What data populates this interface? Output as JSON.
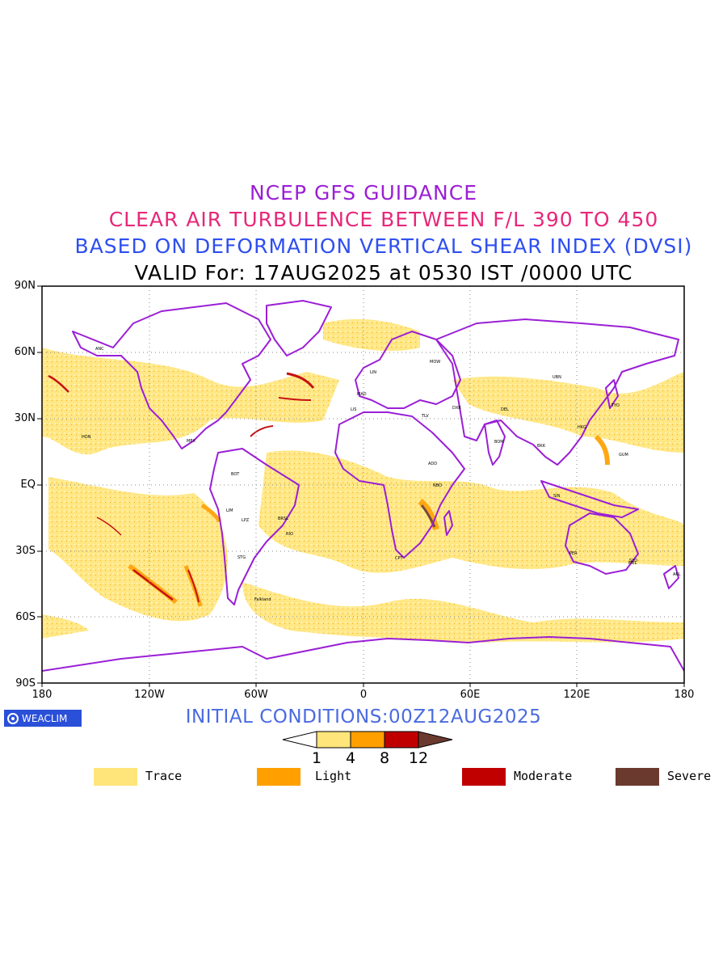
{
  "titles": {
    "line1": "NCEP GFS GUIDANCE",
    "line2": "CLEAR AIR TURBULENCE BETWEEN F/L 390 TO 450",
    "line3": "BASED ON DEFORMATION VERTICAL SHEAR INDEX (DVSI)",
    "line4": "VALID For: 17AUG2025 at 0530 IST /0000 UTC"
  },
  "map": {
    "lat_labels": [
      "90N",
      "60N",
      "30N",
      "EQ",
      "30S",
      "60S",
      "90S"
    ],
    "lon_labels": [
      "180",
      "120W",
      "60W",
      "0",
      "60E",
      "120E",
      "180"
    ],
    "lat_extent": [
      -90,
      90
    ],
    "lon_extent": [
      -180,
      180
    ],
    "gridlines": "dotted",
    "coastline_color": "#9b1fd6",
    "place_labels": [
      "ANC",
      "HON",
      "MEX",
      "BOT",
      "LIM",
      "LPZ",
      "STG",
      "BRSL",
      "RIO",
      "Falkland",
      "MAD",
      "LIS",
      "CPT",
      "LIN",
      "DEL",
      "BOM",
      "BKK",
      "SIN",
      "TYO",
      "SYD",
      "AKL",
      "PER",
      "MEL",
      "HKG",
      "MOW",
      "DXB",
      "NBO",
      "ADD",
      "TLV",
      "UBN",
      "GUM"
    ]
  },
  "colors": {
    "trace": "#ffe57a",
    "light": "#ffa000",
    "moderate": "#c00000",
    "severe": "#6b3a2e",
    "coast": "#9b1fd6"
  },
  "footer": {
    "initial_conditions": "INITIAL CONDITIONS:00Z12AUG2025",
    "logo_text": "WEACLIM"
  },
  "colorbar": {
    "ticks": [
      "1",
      "4",
      "8",
      "12"
    ]
  },
  "legend": [
    {
      "label": "Trace",
      "color": "#ffe57a"
    },
    {
      "label": "Light",
      "color": "#ffa000"
    },
    {
      "label": "Moderate",
      "color": "#c00000"
    },
    {
      "label": "Severe",
      "color": "#6b3a2e"
    }
  ]
}
